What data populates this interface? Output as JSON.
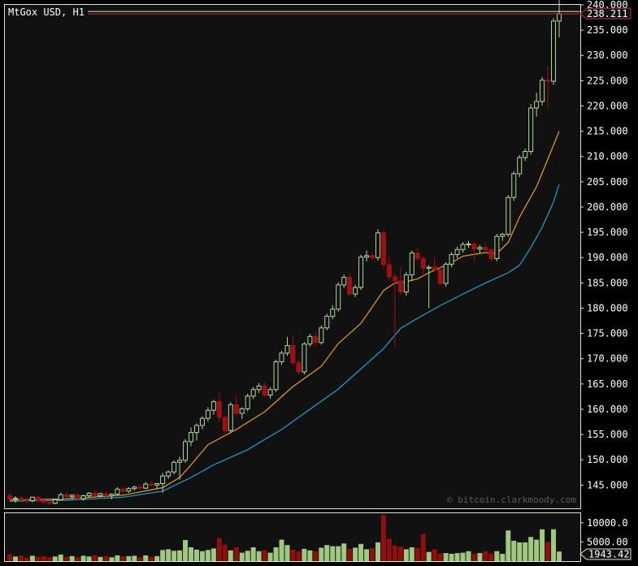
{
  "chart_data": {
    "type": "candlestick",
    "title": "MtGox USD, H1",
    "watermark": "© bitcoin.clarkmoody.com",
    "last_price_label": "238.211",
    "last_volume_label": "1943.42",
    "price_axis": {
      "ylim": [
        140.4,
        240.0
      ],
      "ticks": [
        "145.000",
        "150.000",
        "155.000",
        "160.000",
        "165.000",
        "170.000",
        "175.000",
        "180.000",
        "185.000",
        "190.000",
        "195.000",
        "200.000",
        "205.000",
        "210.000",
        "215.000",
        "220.000",
        "225.000",
        "230.000",
        "235.000",
        "240.000"
      ],
      "tick_values": [
        145,
        150,
        155,
        160,
        165,
        170,
        175,
        180,
        185,
        190,
        195,
        200,
        205,
        210,
        215,
        220,
        225,
        230,
        235,
        240
      ]
    },
    "volume_axis": {
      "ylim": [
        0,
        12500
      ],
      "ticks": [
        "5000.00",
        "10000.0"
      ],
      "tick_values": [
        5000,
        10000
      ]
    },
    "colors": {
      "background": "#111111",
      "up_candle": "#b0d8a0",
      "down_candle": "#a01010",
      "up_volume": "#a0c880",
      "down_volume": "#900e0e",
      "ma_fast": "#e8a020",
      "ma_slow": "#1ea0d8",
      "frame": "#d8ecc8",
      "last_price_line": "#c03040"
    },
    "candles": [
      [
        142.9,
        143.5,
        141.8,
        142.2
      ],
      [
        142.2,
        142.8,
        141.5,
        142.4
      ],
      [
        142.4,
        142.9,
        141.8,
        142.0
      ],
      [
        142.0,
        142.5,
        141.4,
        141.9
      ],
      [
        141.9,
        142.7,
        141.6,
        142.6
      ],
      [
        142.6,
        142.9,
        141.7,
        141.9
      ],
      [
        141.9,
        142.4,
        141.3,
        141.6
      ],
      [
        141.6,
        142.1,
        141.0,
        141.4
      ],
      [
        141.4,
        142.3,
        141.2,
        142.1
      ],
      [
        142.1,
        143.5,
        141.9,
        143.1
      ],
      [
        143.1,
        143.6,
        142.3,
        142.7
      ],
      [
        142.7,
        143.2,
        142.2,
        143.0
      ],
      [
        143.0,
        143.4,
        142.1,
        142.3
      ],
      [
        142.3,
        143.1,
        141.9,
        142.9
      ],
      [
        142.9,
        143.6,
        142.5,
        143.4
      ],
      [
        143.4,
        143.9,
        142.7,
        142.9
      ],
      [
        142.9,
        143.5,
        142.6,
        143.3
      ],
      [
        143.3,
        143.8,
        142.6,
        142.9
      ],
      [
        142.9,
        143.4,
        142.2,
        143.2
      ],
      [
        143.2,
        144.6,
        142.9,
        144.2
      ],
      [
        144.2,
        144.7,
        143.4,
        143.8
      ],
      [
        143.8,
        144.6,
        143.5,
        144.3
      ],
      [
        144.3,
        144.9,
        143.9,
        144.6
      ],
      [
        144.6,
        145.2,
        144.0,
        144.4
      ],
      [
        144.4,
        145.6,
        144.2,
        145.2
      ],
      [
        145.2,
        145.8,
        144.6,
        145.0
      ],
      [
        145.0,
        145.4,
        144.3,
        145.3
      ],
      [
        145.3,
        147.4,
        143.5,
        146.8
      ],
      [
        146.8,
        147.9,
        146.2,
        147.6
      ],
      [
        147.6,
        149.9,
        147.1,
        149.5
      ],
      [
        149.5,
        150.6,
        146.1,
        149.9
      ],
      [
        149.9,
        154.1,
        149.4,
        153.6
      ],
      [
        153.6,
        156.4,
        152.7,
        155.4
      ],
      [
        155.4,
        157.2,
        153.8,
        156.8
      ],
      [
        156.8,
        158.6,
        156.0,
        158.2
      ],
      [
        158.2,
        160.4,
        157.6,
        159.8
      ],
      [
        159.8,
        161.9,
        158.9,
        161.5
      ],
      [
        161.5,
        163.2,
        157.6,
        158.4
      ],
      [
        158.4,
        158.9,
        155.2,
        155.8
      ],
      [
        155.8,
        161.4,
        155.3,
        160.9
      ],
      [
        160.9,
        162.8,
        158.5,
        159.2
      ],
      [
        159.2,
        160.4,
        158.1,
        160.1
      ],
      [
        160.1,
        163.1,
        159.6,
        162.6
      ],
      [
        162.6,
        164.4,
        162.0,
        163.9
      ],
      [
        163.9,
        165.2,
        163.2,
        164.6
      ],
      [
        164.6,
        165.3,
        162.4,
        162.8
      ],
      [
        162.8,
        164.4,
        162.1,
        163.9
      ],
      [
        163.9,
        169.8,
        163.4,
        169.4
      ],
      [
        169.4,
        171.6,
        168.8,
        171.1
      ],
      [
        171.1,
        174.3,
        170.6,
        172.6
      ],
      [
        172.6,
        174.6,
        168.7,
        169.2
      ],
      [
        169.2,
        169.9,
        166.8,
        167.4
      ],
      [
        167.4,
        173.3,
        166.9,
        172.9
      ],
      [
        172.9,
        174.9,
        172.4,
        174.4
      ],
      [
        174.4,
        175.3,
        172.5,
        173.2
      ],
      [
        173.2,
        176.6,
        172.8,
        176.1
      ],
      [
        176.1,
        178.9,
        175.6,
        178.4
      ],
      [
        178.4,
        180.6,
        177.8,
        179.8
      ],
      [
        179.8,
        185.1,
        179.3,
        184.6
      ],
      [
        184.6,
        186.6,
        184.0,
        186.1
      ],
      [
        186.1,
        186.9,
        182.3,
        182.8
      ],
      [
        182.8,
        184.6,
        182.2,
        184.1
      ],
      [
        184.1,
        190.6,
        183.6,
        190.1
      ],
      [
        190.1,
        191.4,
        189.3,
        190.4
      ],
      [
        190.4,
        190.9,
        189.6,
        190.0
      ],
      [
        190.0,
        195.6,
        189.4,
        194.9
      ],
      [
        194.9,
        195.3,
        187.9,
        188.6
      ],
      [
        188.6,
        190.3,
        185.5,
        186.2
      ],
      [
        186.2,
        186.9,
        172.3,
        185.4
      ],
      [
        185.4,
        188.1,
        182.6,
        183.2
      ],
      [
        183.2,
        187.1,
        182.5,
        186.6
      ],
      [
        186.6,
        191.4,
        185.4,
        190.9
      ],
      [
        190.9,
        191.9,
        189.3,
        189.8
      ],
      [
        189.8,
        190.4,
        186.4,
        187.9
      ],
      [
        187.9,
        188.5,
        180.0,
        188.1
      ],
      [
        188.1,
        190.0,
        187.3,
        187.6
      ],
      [
        187.6,
        188.3,
        184.4,
        184.9
      ],
      [
        184.9,
        189.1,
        184.3,
        188.7
      ],
      [
        188.7,
        191.1,
        188.1,
        190.6
      ],
      [
        190.6,
        192.2,
        189.9,
        191.6
      ],
      [
        191.6,
        193.1,
        191.0,
        192.6
      ],
      [
        192.6,
        193.3,
        191.9,
        192.7
      ],
      [
        192.7,
        193.1,
        189.2,
        191.7
      ],
      [
        191.7,
        192.5,
        190.9,
        192.0
      ],
      [
        192.0,
        193.0,
        191.3,
        191.5
      ],
      [
        191.5,
        192.1,
        189.3,
        189.8
      ],
      [
        189.8,
        194.7,
        189.3,
        194.2
      ],
      [
        194.2,
        194.9,
        193.3,
        194.6
      ],
      [
        194.6,
        202.4,
        194.1,
        201.9
      ],
      [
        201.9,
        207.1,
        201.2,
        206.6
      ],
      [
        206.6,
        210.3,
        205.9,
        209.8
      ],
      [
        209.8,
        211.6,
        209.1,
        211.0
      ],
      [
        211.0,
        220.4,
        210.4,
        219.6
      ],
      [
        219.6,
        222.6,
        217.9,
        220.9
      ],
      [
        220.9,
        225.7,
        220.1,
        225.1
      ],
      [
        225.1,
        227.8,
        219.6,
        224.9
      ],
      [
        224.9,
        237.4,
        224.2,
        236.8
      ],
      [
        236.8,
        241.4,
        233.6,
        238.2
      ]
    ],
    "volumes": [
      1800,
      1200,
      1500,
      900,
      1400,
      1100,
      1300,
      1000,
      1200,
      1700,
      1100,
      1300,
      1000,
      1400,
      1200,
      1600,
      1100,
      1300,
      1000,
      1500,
      1200,
      1300,
      1400,
      1000,
      1500,
      1100,
      1300,
      2900,
      3100,
      2700,
      2800,
      5500,
      3600,
      3000,
      2600,
      2900,
      3300,
      6000,
      4300,
      2800,
      3600,
      2200,
      2700,
      3600,
      2600,
      2900,
      2200,
      3600,
      5600,
      4200,
      3000,
      2600,
      3200,
      2800,
      2600,
      3500,
      4200,
      3900,
      3900,
      4600,
      3200,
      3500,
      4500,
      3100,
      3400,
      4900,
      12000,
      5800,
      4100,
      3800,
      3100,
      3600,
      3400,
      7100,
      2400,
      3100,
      2000,
      2100,
      1900,
      2100,
      2200,
      2600,
      1900,
      2100,
      2600,
      2000,
      2600,
      1900,
      8000,
      5300,
      4900,
      4900,
      6300,
      5600,
      8300,
      5000,
      8300,
      2500
    ],
    "ma_fast": [
      [
        0,
        142.0
      ],
      [
        10,
        142.3
      ],
      [
        20,
        143.0
      ],
      [
        27,
        144.5
      ],
      [
        30,
        146.5
      ],
      [
        32,
        149.0
      ],
      [
        35,
        153.0
      ],
      [
        40,
        156.0
      ],
      [
        45,
        159.5
      ],
      [
        50,
        164.5
      ],
      [
        55,
        168.5
      ],
      [
        58,
        173.0
      ],
      [
        62,
        177.0
      ],
      [
        66,
        183.5
      ],
      [
        68,
        185.0
      ],
      [
        70,
        185.2
      ],
      [
        72,
        185.8
      ],
      [
        74,
        187.0
      ],
      [
        76,
        188.0
      ],
      [
        78,
        189.0
      ],
      [
        80,
        190.3
      ],
      [
        84,
        191.0
      ],
      [
        86,
        190.8
      ],
      [
        88,
        193.0
      ],
      [
        90,
        198.0
      ],
      [
        93,
        204.0
      ],
      [
        95,
        209.5
      ],
      [
        97,
        215.0
      ]
    ],
    "ma_slow": [
      [
        0,
        141.8
      ],
      [
        10,
        142.0
      ],
      [
        20,
        142.6
      ],
      [
        27,
        143.8
      ],
      [
        32,
        146.5
      ],
      [
        36,
        149.0
      ],
      [
        42,
        152.0
      ],
      [
        48,
        156.0
      ],
      [
        53,
        160.0
      ],
      [
        58,
        164.0
      ],
      [
        63,
        169.0
      ],
      [
        66,
        172.0
      ],
      [
        69,
        176.0
      ],
      [
        72,
        178.0
      ],
      [
        76,
        180.5
      ],
      [
        80,
        182.8
      ],
      [
        84,
        185.0
      ],
      [
        88,
        187.0
      ],
      [
        90,
        188.5
      ],
      [
        92,
        192.0
      ],
      [
        94,
        196.0
      ],
      [
        96,
        201.0
      ],
      [
        97,
        204.5
      ]
    ]
  }
}
